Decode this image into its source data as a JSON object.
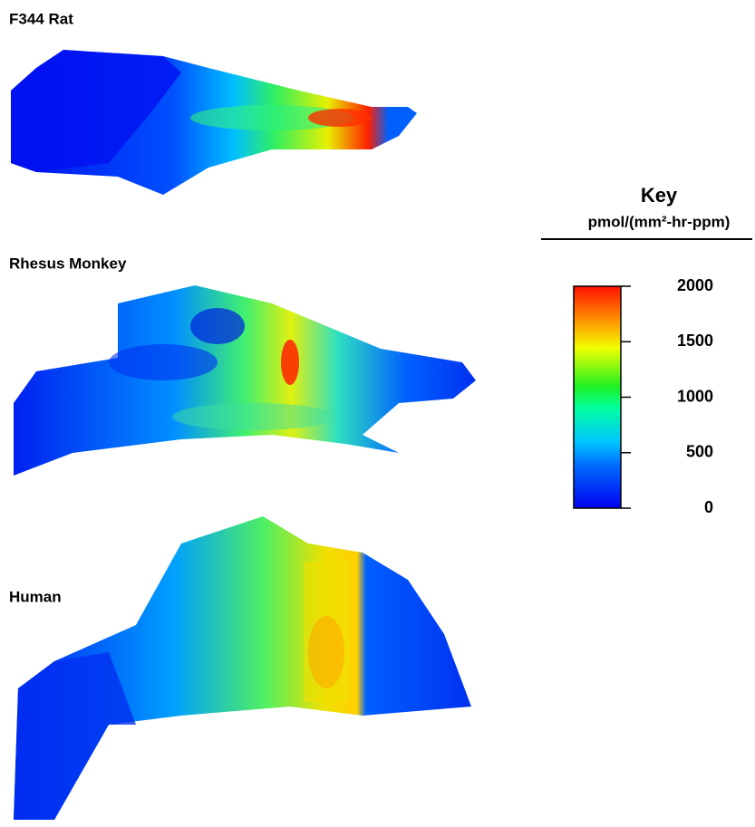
{
  "panels": [
    {
      "label": "F344 Rat"
    },
    {
      "label": "Rhesus Monkey"
    },
    {
      "label": "Human"
    }
  ],
  "key": {
    "title": "Key",
    "unit": "pmol/(mm²-hr-ppm)",
    "range": [
      0,
      2000
    ],
    "ticks": [
      0,
      500,
      1000,
      1500,
      2000
    ]
  }
}
